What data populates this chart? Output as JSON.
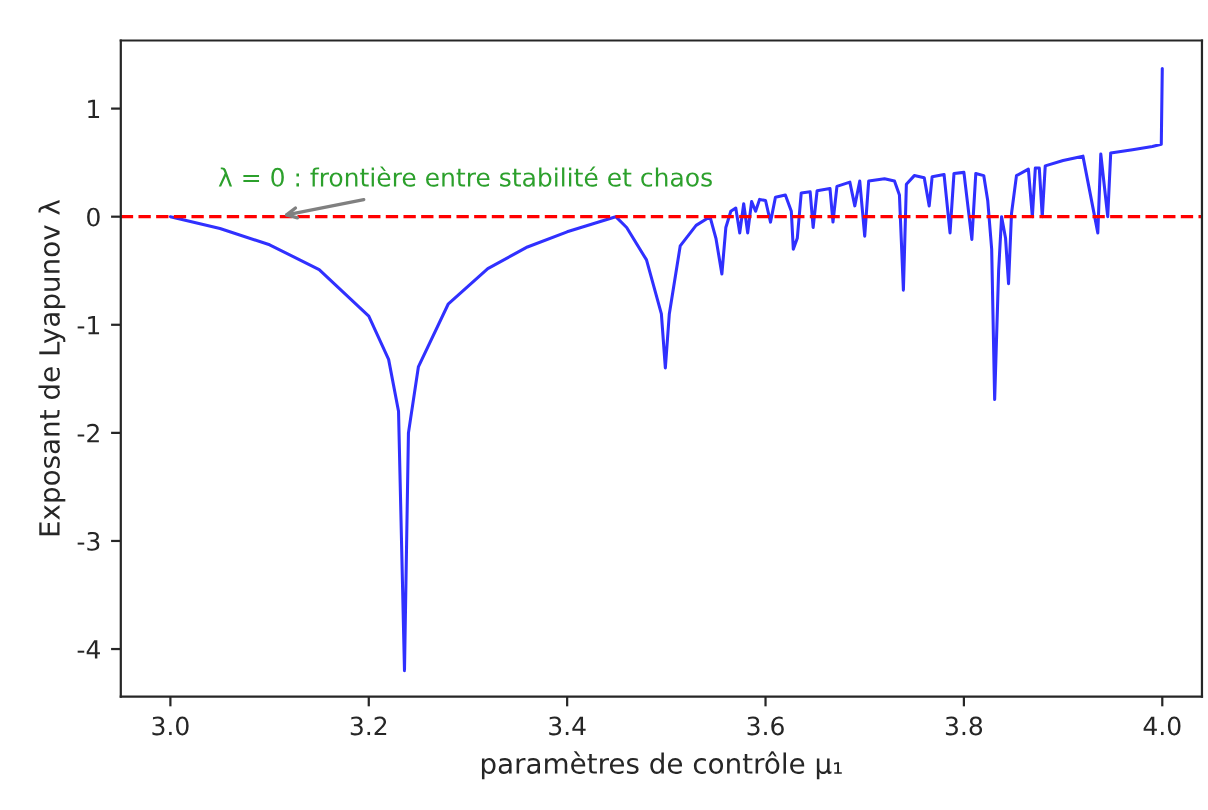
{
  "chart_data": {
    "type": "line",
    "xlabel": "paramètres de contrôle μ₁",
    "ylabel": "Exposant de Lyapunov λ",
    "xlim": [
      2.95,
      4.04
    ],
    "ylim": [
      -4.44,
      1.63
    ],
    "xticks": [
      {
        "value": 3,
        "label": "3.0"
      },
      {
        "value": 3.2,
        "label": "3.2"
      },
      {
        "value": 3.4,
        "label": "3.4"
      },
      {
        "value": 3.6,
        "label": "3.6"
      },
      {
        "value": 3.8,
        "label": "3.8"
      },
      {
        "value": 4,
        "label": "4.0"
      }
    ],
    "yticks": [
      -4,
      -3,
      -2,
      -1,
      0,
      1
    ],
    "grid": false,
    "marker": "none",
    "line_style": "solid",
    "series": [
      {
        "color": "#3030ff",
        "x": [
          3.0,
          3.05,
          3.1,
          3.15,
          3.2,
          3.22,
          3.23,
          3.236,
          3.24,
          3.25,
          3.28,
          3.32,
          3.36,
          3.4,
          3.449,
          3.46,
          3.48,
          3.495,
          3.499,
          3.503,
          3.514,
          3.53,
          3.544,
          3.55,
          3.556,
          3.56,
          3.565,
          3.57,
          3.574,
          3.578,
          3.582,
          3.586,
          3.59,
          3.594,
          3.6,
          3.605,
          3.61,
          3.62,
          3.626,
          3.628,
          3.632,
          3.636,
          3.645,
          3.648,
          3.652,
          3.665,
          3.668,
          3.672,
          3.685,
          3.69,
          3.695,
          3.7,
          3.704,
          3.72,
          3.73,
          3.735,
          3.739,
          3.742,
          3.75,
          3.76,
          3.765,
          3.768,
          3.78,
          3.786,
          3.79,
          3.8,
          3.808,
          3.812,
          3.82,
          3.824,
          3.828,
          3.831,
          3.835,
          3.838,
          3.842,
          3.845,
          3.848,
          3.853,
          3.865,
          3.869,
          3.872,
          3.876,
          3.879,
          3.882,
          3.9,
          3.92,
          3.935,
          3.938,
          3.945,
          3.948,
          3.97,
          3.99,
          3.999,
          4.0
        ],
        "values": [
          0,
          -0.11,
          -0.26,
          -0.49,
          -0.92,
          -1.32,
          -1.8,
          -4.2,
          -2.0,
          -1.39,
          -0.81,
          -0.48,
          -0.28,
          -0.14,
          0,
          -0.1,
          -0.4,
          -0.9,
          -1.4,
          -0.9,
          -0.27,
          -0.08,
          0,
          -0.2,
          -0.53,
          -0.1,
          0.05,
          0.08,
          -0.15,
          0.12,
          -0.15,
          0.14,
          0.05,
          0.16,
          0.15,
          -0.05,
          0.18,
          0.2,
          0.05,
          -0.3,
          -0.2,
          0.22,
          0.23,
          -0.1,
          0.24,
          0.26,
          -0.05,
          0.28,
          0.32,
          0.1,
          0.33,
          -0.18,
          0.33,
          0.35,
          0.33,
          0.2,
          -0.68,
          0.3,
          0.38,
          0.36,
          0.1,
          0.37,
          0.39,
          -0.15,
          0.4,
          0.41,
          -0.21,
          0.4,
          0.38,
          0.15,
          -0.3,
          -1.69,
          -0.5,
          0.0,
          -0.2,
          -0.62,
          0.03,
          0.38,
          0.44,
          0.0,
          0.45,
          0.45,
          0.0,
          0.47,
          0.52,
          0.56,
          -0.15,
          0.58,
          0.0,
          0.59,
          0.62,
          0.65,
          0.67,
          1.37
        ]
      }
    ],
    "ref_lines": [
      {
        "axis": "y",
        "value": 0,
        "color": "#ff0000",
        "line_style": "dashed"
      }
    ],
    "annotations": [
      {
        "text": "λ = 0 : frontière entre stabilité et chaos",
        "x": 3.108,
        "y": 0
      }
    ]
  }
}
